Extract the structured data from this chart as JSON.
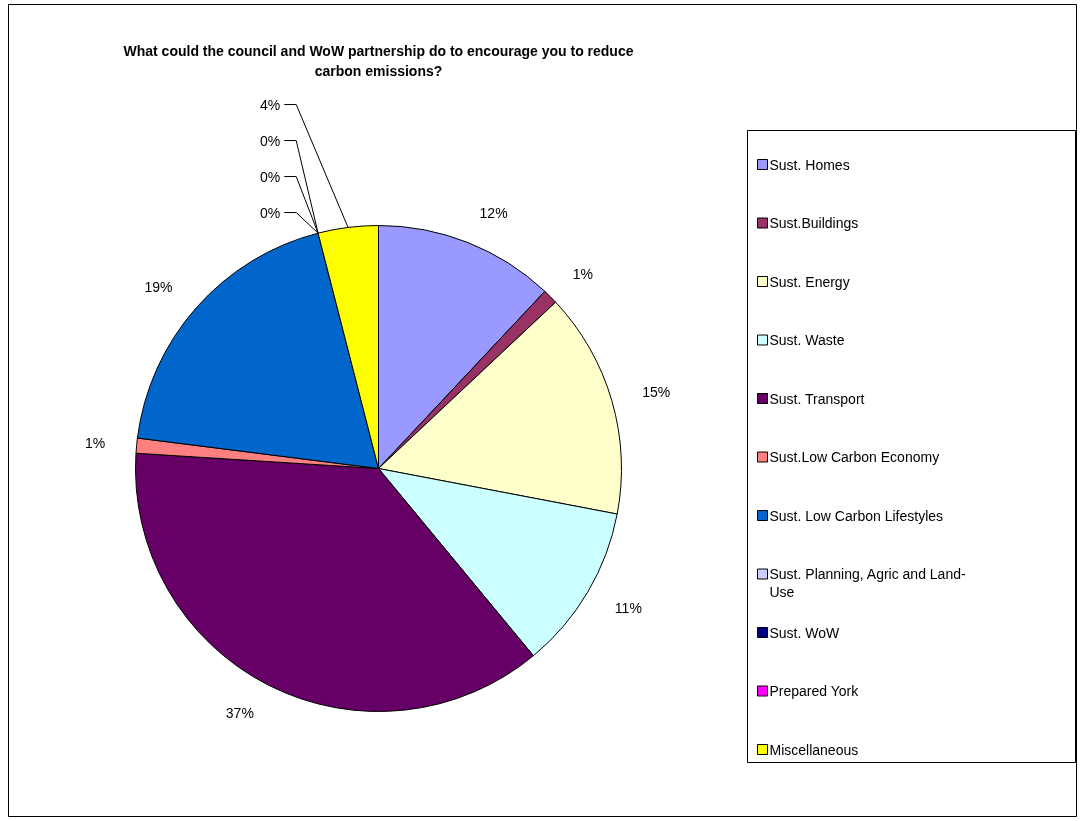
{
  "chart_data": {
    "type": "pie",
    "title": "What could the council and WoW partnership do to encourage you to reduce carbon emissions?",
    "categories": [
      "Sust. Homes",
      "Sust.Buildings",
      "Sust. Energy",
      "Sust. Waste",
      "Sust. Transport",
      "Sust.Low Carbon Economy",
      "Sust. Low Carbon Lifestyles",
      "Sust. Planning, Agric and Land-Use",
      "Sust. WoW",
      "Prepared York",
      "Miscellaneous"
    ],
    "values": [
      12,
      1,
      15,
      11,
      37,
      1,
      19,
      0,
      0,
      0,
      4
    ],
    "value_labels": [
      "12%",
      "1%",
      "15%",
      "11%",
      "37%",
      "1%",
      "19%",
      "0%",
      "0%",
      "0%",
      "4%"
    ],
    "colors": [
      "#9999ff",
      "#993366",
      "#ffffcc",
      "#ccffff",
      "#660066",
      "#ff8080",
      "#0066cc",
      "#ccccff",
      "#000080",
      "#ff00ff",
      "#ffff00"
    ],
    "legend": "right"
  }
}
